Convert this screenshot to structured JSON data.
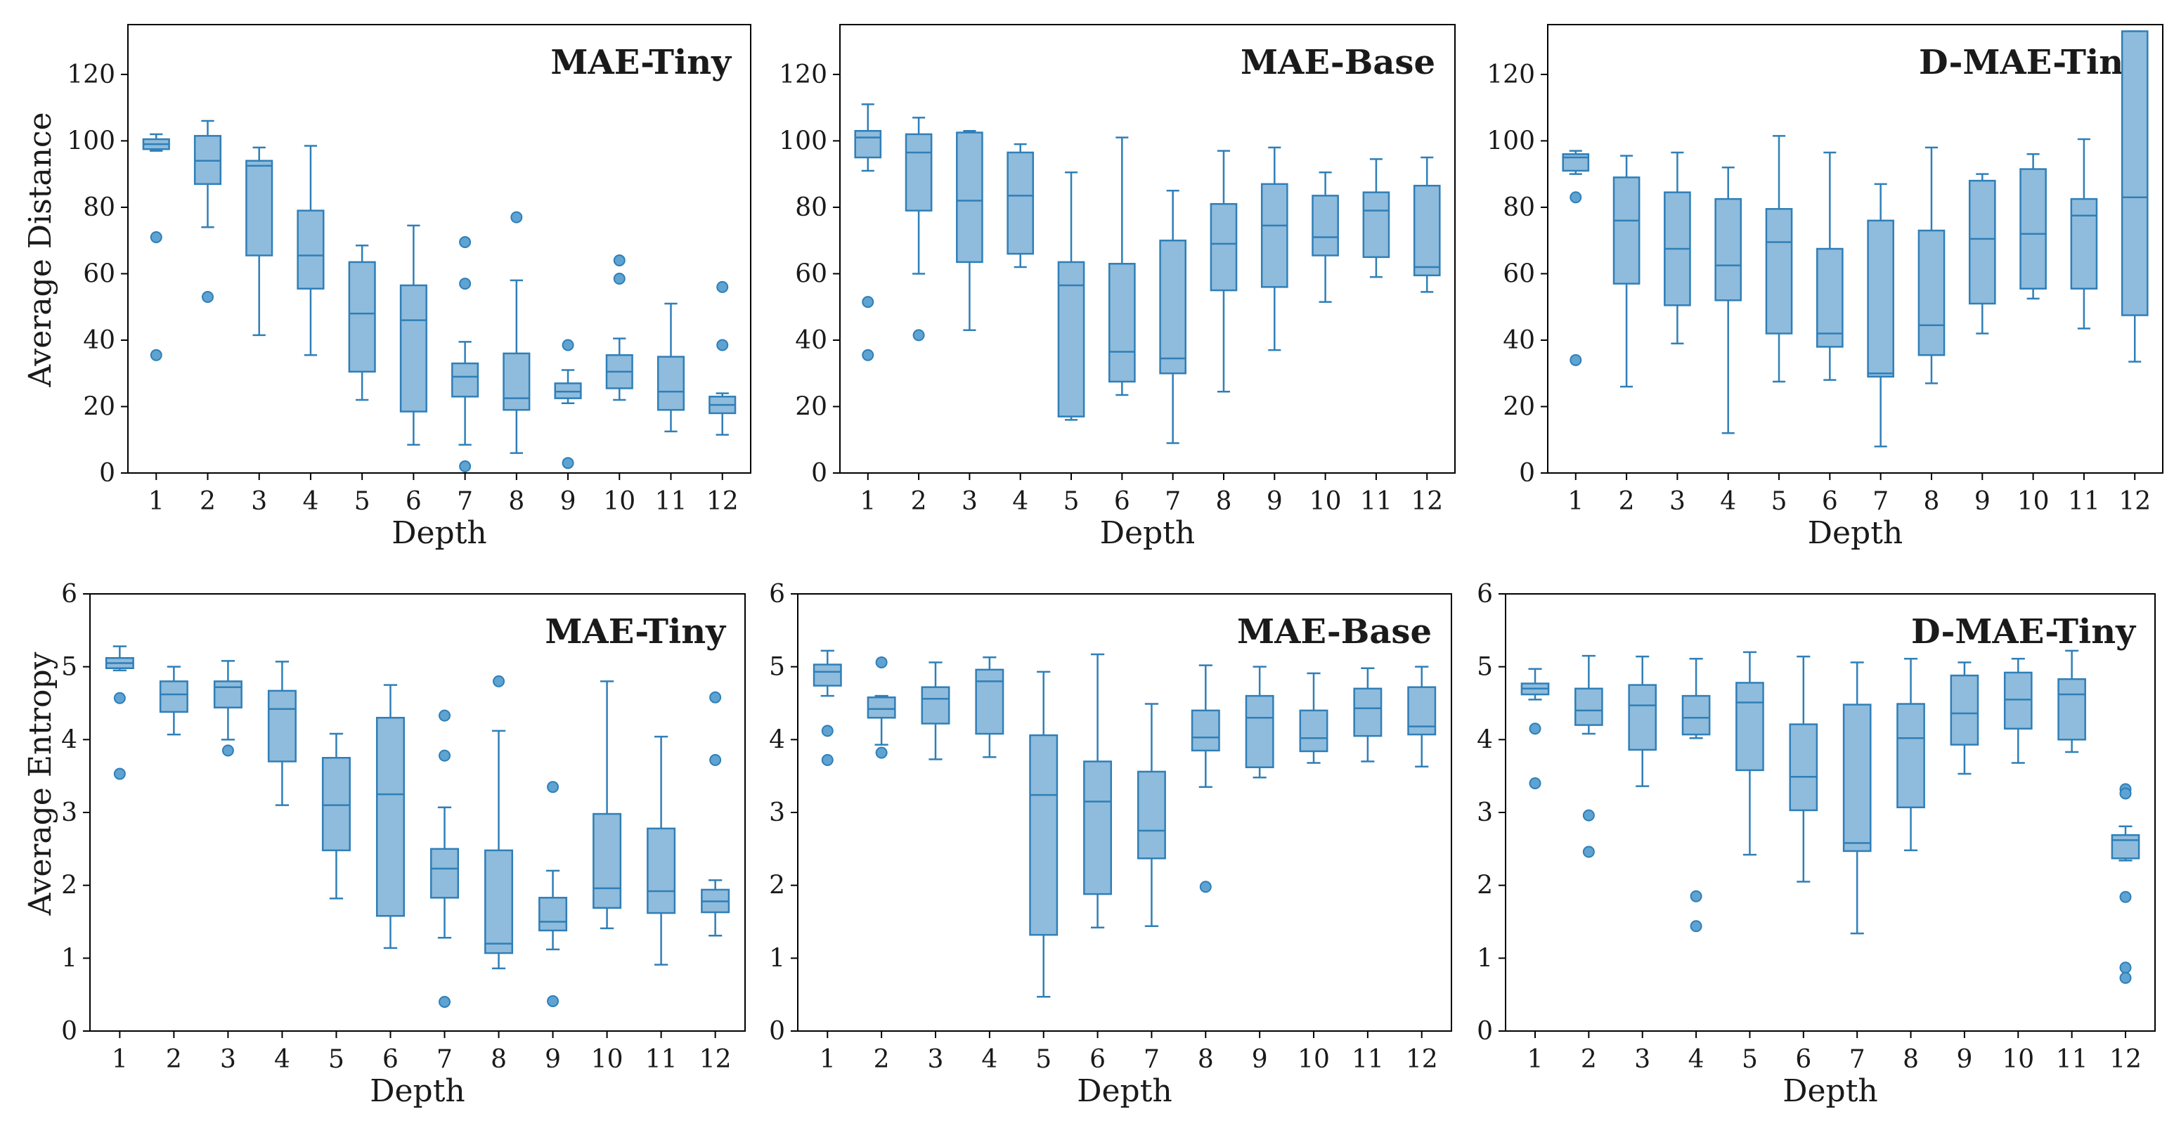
{
  "figure": {
    "ylabel_top": "Average Distance",
    "ylabel_bottom": "Average Entropy",
    "colors": {
      "box_fill": "#8fbcdc",
      "box_edge": "#2f7fb8",
      "outlier_fill": "#5ea3d1"
    }
  },
  "chart_data": [
    {
      "type": "box",
      "title": "MAE-Tiny",
      "xlabel": "Depth",
      "ylabel": "Average Distance",
      "ylim": [
        0,
        135
      ],
      "yticks": [
        0,
        20,
        40,
        60,
        80,
        100,
        120
      ],
      "categories": [
        "1",
        "2",
        "3",
        "4",
        "5",
        "6",
        "7",
        "8",
        "9",
        "10",
        "11",
        "12"
      ],
      "boxes": [
        {
          "lo": 97,
          "q1": 97.5,
          "med": 99,
          "q3": 100.5,
          "hi": 102,
          "outliers": [
            71,
            35.5
          ]
        },
        {
          "lo": 74,
          "q1": 87,
          "med": 94,
          "q3": 101.5,
          "hi": 106,
          "outliers": [
            53
          ]
        },
        {
          "lo": 41.5,
          "q1": 65.5,
          "med": 92.5,
          "q3": 94,
          "hi": 98,
          "outliers": []
        },
        {
          "lo": 35.5,
          "q1": 55.5,
          "med": 65.5,
          "q3": 79,
          "hi": 98.5,
          "outliers": []
        },
        {
          "lo": 22,
          "q1": 30.5,
          "med": 48,
          "q3": 63.5,
          "hi": 68.5,
          "outliers": []
        },
        {
          "lo": 8.5,
          "q1": 18.5,
          "med": 46,
          "q3": 56.5,
          "hi": 74.5,
          "outliers": []
        },
        {
          "lo": 8.5,
          "q1": 23,
          "med": 29,
          "q3": 33,
          "hi": 39.5,
          "outliers": [
            69.5,
            57,
            2
          ]
        },
        {
          "lo": 6,
          "q1": 19,
          "med": 22.5,
          "q3": 36,
          "hi": 58,
          "outliers": [
            77
          ]
        },
        {
          "lo": 21,
          "q1": 22.5,
          "med": 24.5,
          "q3": 27,
          "hi": 31,
          "outliers": [
            38.5,
            3
          ]
        },
        {
          "lo": 22,
          "q1": 25.5,
          "med": 30.5,
          "q3": 35.5,
          "hi": 40.5,
          "outliers": [
            64,
            58.5
          ]
        },
        {
          "lo": 12.5,
          "q1": 19,
          "med": 24.5,
          "q3": 35,
          "hi": 51,
          "outliers": []
        },
        {
          "lo": 11.5,
          "q1": 18,
          "med": 20.5,
          "q3": 23,
          "hi": 24,
          "outliers": [
            56,
            38.5
          ]
        }
      ]
    },
    {
      "type": "box",
      "title": "MAE-Base",
      "xlabel": "Depth",
      "ylabel": "",
      "ylim": [
        0,
        135
      ],
      "yticks": [
        0,
        20,
        40,
        60,
        80,
        100,
        120
      ],
      "categories": [
        "1",
        "2",
        "3",
        "4",
        "5",
        "6",
        "7",
        "8",
        "9",
        "10",
        "11",
        "12"
      ],
      "boxes": [
        {
          "lo": 91,
          "q1": 95,
          "med": 101,
          "q3": 103,
          "hi": 111,
          "outliers": [
            51.5,
            35.5
          ]
        },
        {
          "lo": 60,
          "q1": 79,
          "med": 96.5,
          "q3": 102,
          "hi": 107,
          "outliers": [
            41.5
          ]
        },
        {
          "lo": 43,
          "q1": 63.5,
          "med": 82,
          "q3": 102.5,
          "hi": 103,
          "outliers": []
        },
        {
          "lo": 62,
          "q1": 66,
          "med": 83.5,
          "q3": 96.5,
          "hi": 99,
          "outliers": []
        },
        {
          "lo": 16,
          "q1": 17,
          "med": 56.5,
          "q3": 63.5,
          "hi": 90.5,
          "outliers": []
        },
        {
          "lo": 23.5,
          "q1": 27.5,
          "med": 36.5,
          "q3": 63,
          "hi": 101,
          "outliers": []
        },
        {
          "lo": 9,
          "q1": 30,
          "med": 34.5,
          "q3": 70,
          "hi": 85,
          "outliers": []
        },
        {
          "lo": 24.5,
          "q1": 55,
          "med": 69,
          "q3": 81,
          "hi": 97,
          "outliers": []
        },
        {
          "lo": 37,
          "q1": 56,
          "med": 74.5,
          "q3": 87,
          "hi": 98,
          "outliers": []
        },
        {
          "lo": 51.5,
          "q1": 65.5,
          "med": 71,
          "q3": 83.5,
          "hi": 90.5,
          "outliers": []
        },
        {
          "lo": 59,
          "q1": 65,
          "med": 79,
          "q3": 84.5,
          "hi": 94.5,
          "outliers": []
        },
        {
          "lo": 54.5,
          "q1": 59.5,
          "med": 62,
          "q3": 86.5,
          "hi": 95,
          "outliers": []
        }
      ]
    },
    {
      "type": "box",
      "title": "D-MAE-Tiny",
      "xlabel": "Depth",
      "ylabel": "",
      "ylim": [
        0,
        135
      ],
      "yticks": [
        0,
        20,
        40,
        60,
        80,
        100,
        120
      ],
      "categories": [
        "1",
        "2",
        "3",
        "4",
        "5",
        "6",
        "7",
        "8",
        "9",
        "10",
        "11",
        "12"
      ],
      "boxes": [
        {
          "lo": 90,
          "q1": 91,
          "med": 95,
          "q3": 96,
          "hi": 97,
          "outliers": [
            83,
            34
          ]
        },
        {
          "lo": 26,
          "q1": 57,
          "med": 76,
          "q3": 89,
          "hi": 95.5,
          "outliers": []
        },
        {
          "lo": 39,
          "q1": 50.5,
          "med": 67.5,
          "q3": 84.5,
          "hi": 96.5,
          "outliers": []
        },
        {
          "lo": 12,
          "q1": 52,
          "med": 62.5,
          "q3": 82.5,
          "hi": 92,
          "outliers": []
        },
        {
          "lo": 27.5,
          "q1": 42,
          "med": 69.5,
          "q3": 79.5,
          "hi": 101.5,
          "outliers": []
        },
        {
          "lo": 28,
          "q1": 38,
          "med": 42,
          "q3": 67.5,
          "hi": 96.5,
          "outliers": []
        },
        {
          "lo": 8,
          "q1": 29,
          "med": 30,
          "q3": 76,
          "hi": 87,
          "outliers": []
        },
        {
          "lo": 27,
          "q1": 35.5,
          "med": 44.5,
          "q3": 73,
          "hi": 98,
          "outliers": []
        },
        {
          "lo": 42,
          "q1": 51,
          "med": 70.5,
          "q3": 88,
          "hi": 90,
          "outliers": []
        },
        {
          "lo": 52.5,
          "q1": 55.5,
          "med": 72,
          "q3": 91.5,
          "hi": 96,
          "outliers": []
        },
        {
          "lo": 43.5,
          "q1": 55.5,
          "med": 77.5,
          "q3": 82.5,
          "hi": 100.5,
          "outliers": []
        },
        {
          "lo": 33.5,
          "q1": 47.5,
          "med": 83,
          "q3": 133,
          "hi": 133,
          "outliers": []
        }
      ]
    },
    {
      "type": "box",
      "title": "MAE-Tiny",
      "xlabel": "Depth",
      "ylabel": "Average Entropy",
      "ylim": [
        0,
        6
      ],
      "yticks": [
        0,
        1,
        2,
        3,
        4,
        5,
        6
      ],
      "categories": [
        "1",
        "2",
        "3",
        "4",
        "5",
        "6",
        "7",
        "8",
        "9",
        "10",
        "11",
        "12"
      ],
      "boxes": [
        {
          "lo": 4.95,
          "q1": 4.98,
          "med": 5.05,
          "q3": 5.12,
          "hi": 5.28,
          "outliers": [
            4.57,
            3.53
          ]
        },
        {
          "lo": 4.07,
          "q1": 4.38,
          "med": 4.62,
          "q3": 4.8,
          "hi": 5.0,
          "outliers": []
        },
        {
          "lo": 4.0,
          "q1": 4.44,
          "med": 4.72,
          "q3": 4.8,
          "hi": 5.08,
          "outliers": [
            3.85
          ]
        },
        {
          "lo": 3.1,
          "q1": 3.7,
          "med": 4.42,
          "q3": 4.67,
          "hi": 5.07,
          "outliers": []
        },
        {
          "lo": 1.82,
          "q1": 2.48,
          "med": 3.1,
          "q3": 3.75,
          "hi": 4.08,
          "outliers": []
        },
        {
          "lo": 1.14,
          "q1": 1.58,
          "med": 3.25,
          "q3": 4.3,
          "hi": 4.75,
          "outliers": []
        },
        {
          "lo": 1.28,
          "q1": 1.83,
          "med": 2.23,
          "q3": 2.5,
          "hi": 3.07,
          "outliers": [
            4.33,
            3.78,
            0.4
          ]
        },
        {
          "lo": 0.86,
          "q1": 1.07,
          "med": 1.2,
          "q3": 2.48,
          "hi": 4.12,
          "outliers": [
            4.8
          ]
        },
        {
          "lo": 1.12,
          "q1": 1.38,
          "med": 1.5,
          "q3": 1.83,
          "hi": 2.2,
          "outliers": [
            3.35,
            0.41
          ]
        },
        {
          "lo": 1.41,
          "q1": 1.69,
          "med": 1.96,
          "q3": 2.98,
          "hi": 4.8,
          "outliers": []
        },
        {
          "lo": 0.91,
          "q1": 1.62,
          "med": 1.92,
          "q3": 2.78,
          "hi": 4.04,
          "outliers": []
        },
        {
          "lo": 1.31,
          "q1": 1.63,
          "med": 1.78,
          "q3": 1.94,
          "hi": 2.07,
          "outliers": [
            4.58,
            3.72
          ]
        }
      ]
    },
    {
      "type": "box",
      "title": "MAE-Base",
      "xlabel": "Depth",
      "ylabel": "",
      "ylim": [
        0,
        6
      ],
      "yticks": [
        0,
        1,
        2,
        3,
        4,
        5,
        6
      ],
      "categories": [
        "1",
        "2",
        "3",
        "4",
        "5",
        "6",
        "7",
        "8",
        "9",
        "10",
        "11",
        "12"
      ],
      "boxes": [
        {
          "lo": 4.6,
          "q1": 4.74,
          "med": 4.93,
          "q3": 5.03,
          "hi": 5.22,
          "outliers": [
            4.12,
            3.72
          ]
        },
        {
          "lo": 3.93,
          "q1": 4.3,
          "med": 4.42,
          "q3": 4.58,
          "hi": 4.6,
          "outliers": [
            5.06,
            3.82
          ]
        },
        {
          "lo": 3.73,
          "q1": 4.22,
          "med": 4.56,
          "q3": 4.72,
          "hi": 5.06,
          "outliers": []
        },
        {
          "lo": 3.76,
          "q1": 4.08,
          "med": 4.8,
          "q3": 4.96,
          "hi": 5.13,
          "outliers": []
        },
        {
          "lo": 0.47,
          "q1": 1.32,
          "med": 3.24,
          "q3": 4.06,
          "hi": 4.93,
          "outliers": []
        },
        {
          "lo": 1.42,
          "q1": 1.88,
          "med": 3.15,
          "q3": 3.7,
          "hi": 5.17,
          "outliers": []
        },
        {
          "lo": 1.44,
          "q1": 2.37,
          "med": 2.75,
          "q3": 3.56,
          "hi": 4.49,
          "outliers": []
        },
        {
          "lo": 3.35,
          "q1": 3.85,
          "med": 4.03,
          "q3": 4.4,
          "hi": 5.02,
          "outliers": [
            1.98
          ]
        },
        {
          "lo": 3.48,
          "q1": 3.62,
          "med": 4.3,
          "q3": 4.6,
          "hi": 5.0,
          "outliers": []
        },
        {
          "lo": 3.68,
          "q1": 3.84,
          "med": 4.02,
          "q3": 4.4,
          "hi": 4.91,
          "outliers": []
        },
        {
          "lo": 3.7,
          "q1": 4.05,
          "med": 4.43,
          "q3": 4.7,
          "hi": 4.98,
          "outliers": []
        },
        {
          "lo": 3.63,
          "q1": 4.07,
          "med": 4.18,
          "q3": 4.72,
          "hi": 5.0,
          "outliers": []
        }
      ]
    },
    {
      "type": "box",
      "title": "D-MAE-Tiny",
      "xlabel": "Depth",
      "ylabel": "",
      "ylim": [
        0,
        6
      ],
      "yticks": [
        0,
        1,
        2,
        3,
        4,
        5,
        6
      ],
      "categories": [
        "1",
        "2",
        "3",
        "4",
        "5",
        "6",
        "7",
        "8",
        "9",
        "10",
        "11",
        "12"
      ],
      "boxes": [
        {
          "lo": 4.55,
          "q1": 4.62,
          "med": 4.7,
          "q3": 4.77,
          "hi": 4.97,
          "outliers": [
            4.15,
            3.4
          ]
        },
        {
          "lo": 4.08,
          "q1": 4.2,
          "med": 4.4,
          "q3": 4.7,
          "hi": 5.15,
          "outliers": [
            2.96,
            2.46
          ]
        },
        {
          "lo": 3.36,
          "q1": 3.86,
          "med": 4.47,
          "q3": 4.75,
          "hi": 5.14,
          "outliers": []
        },
        {
          "lo": 4.02,
          "q1": 4.07,
          "med": 4.3,
          "q3": 4.6,
          "hi": 5.11,
          "outliers": [
            1.85,
            1.44
          ]
        },
        {
          "lo": 2.42,
          "q1": 3.58,
          "med": 4.51,
          "q3": 4.78,
          "hi": 5.2,
          "outliers": []
        },
        {
          "lo": 2.05,
          "q1": 3.03,
          "med": 3.49,
          "q3": 4.21,
          "hi": 5.14,
          "outliers": []
        },
        {
          "lo": 1.34,
          "q1": 2.47,
          "med": 2.58,
          "q3": 4.48,
          "hi": 5.06,
          "outliers": []
        },
        {
          "lo": 2.48,
          "q1": 3.07,
          "med": 4.02,
          "q3": 4.49,
          "hi": 5.11,
          "outliers": []
        },
        {
          "lo": 3.53,
          "q1": 3.93,
          "med": 4.36,
          "q3": 4.88,
          "hi": 5.06,
          "outliers": []
        },
        {
          "lo": 3.68,
          "q1": 4.15,
          "med": 4.55,
          "q3": 4.92,
          "hi": 5.11,
          "outliers": []
        },
        {
          "lo": 3.83,
          "q1": 4.0,
          "med": 4.62,
          "q3": 4.83,
          "hi": 5.22,
          "outliers": []
        },
        {
          "lo": 2.34,
          "q1": 2.37,
          "med": 2.62,
          "q3": 2.69,
          "hi": 2.81,
          "outliers": [
            3.32,
            3.26,
            1.84,
            0.87,
            0.73
          ]
        }
      ]
    }
  ]
}
